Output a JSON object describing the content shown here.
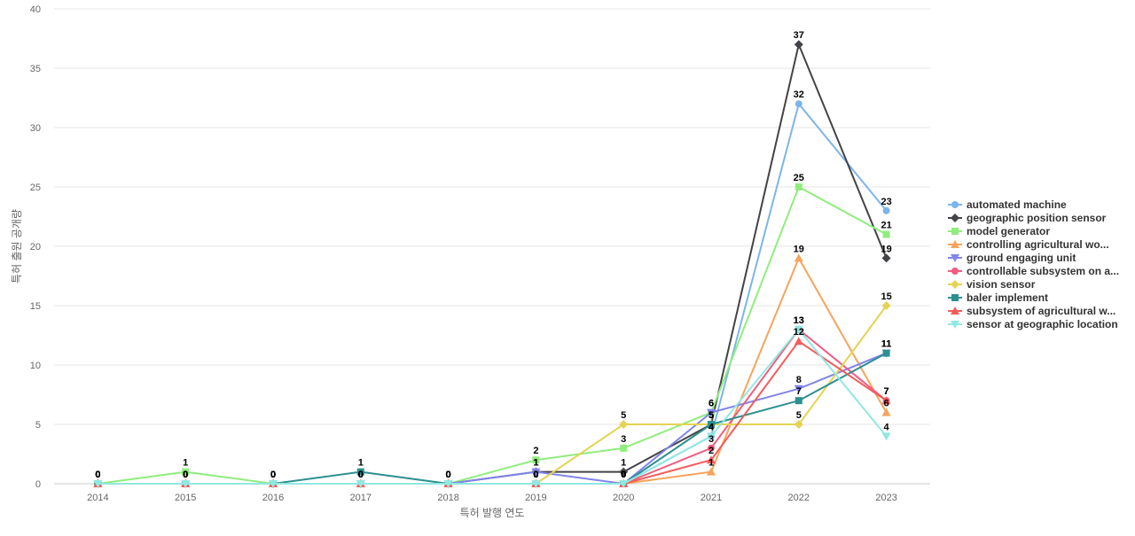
{
  "chart_data": {
    "type": "line",
    "title": "",
    "xlabel": "특허 발행 연도",
    "ylabel": "특허 출원 공개량",
    "categories": [
      "2014",
      "2015",
      "2016",
      "2017",
      "2018",
      "2019",
      "2020",
      "2021",
      "2022",
      "2023"
    ],
    "ylim": [
      0,
      40
    ],
    "yticks": [
      0,
      5,
      10,
      15,
      20,
      25,
      30,
      35,
      40
    ],
    "grid": true,
    "legend_position": "right",
    "series": [
      {
        "name": "automated machine",
        "color": "#7cb5ec",
        "marker": "circle",
        "values": [
          0,
          0,
          0,
          0,
          0,
          0,
          0,
          4,
          32,
          23
        ]
      },
      {
        "name": "geographic position sensor",
        "color": "#434348",
        "marker": "diamond",
        "values": [
          0,
          0,
          0,
          0,
          0,
          1,
          1,
          5,
          37,
          19
        ]
      },
      {
        "name": "model generator",
        "color": "#90ed7d",
        "marker": "square",
        "values": [
          0,
          1,
          0,
          0,
          0,
          2,
          3,
          6,
          25,
          21
        ]
      },
      {
        "name": "controlling agricultural wo...",
        "color": "#f7a35c",
        "marker": "triangle",
        "values": [
          0,
          0,
          0,
          0,
          0,
          0,
          0,
          1,
          19,
          6
        ]
      },
      {
        "name": "ground engaging unit",
        "color": "#8085e9",
        "marker": "triangle-down",
        "values": [
          0,
          0,
          0,
          0,
          0,
          1,
          0,
          6,
          8,
          11
        ]
      },
      {
        "name": "controllable subsystem on a...",
        "color": "#f15c80",
        "marker": "circle",
        "values": [
          0,
          0,
          0,
          0,
          0,
          0,
          0,
          3,
          13,
          7
        ]
      },
      {
        "name": "vision sensor",
        "color": "#e4d354",
        "marker": "diamond",
        "values": [
          0,
          0,
          0,
          0,
          0,
          0,
          5,
          5,
          5,
          15
        ]
      },
      {
        "name": "baler implement",
        "color": "#2b908f",
        "marker": "square",
        "values": [
          0,
          0,
          0,
          1,
          0,
          0,
          0,
          5,
          7,
          11
        ]
      },
      {
        "name": "subsystem of agricultural w...",
        "color": "#f45b5b",
        "marker": "triangle",
        "values": [
          0,
          0,
          0,
          0,
          0,
          0,
          0,
          2,
          12,
          7
        ]
      },
      {
        "name": "sensor at geographic location",
        "color": "#91e8e1",
        "marker": "triangle-down",
        "values": [
          0,
          0,
          0,
          0,
          0,
          0,
          0,
          4,
          13,
          4
        ]
      }
    ]
  }
}
